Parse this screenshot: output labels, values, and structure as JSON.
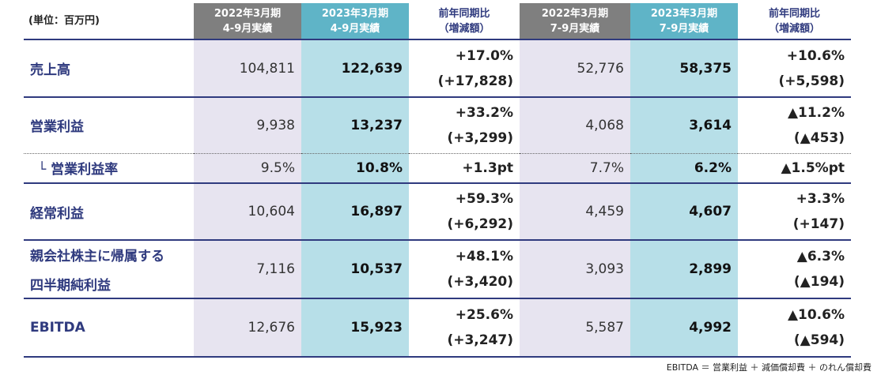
{
  "table": {
    "unit_label": "(単位：百万円)",
    "headers": [
      {
        "line1": "2022年3月期",
        "line2": "4-9月実績"
      },
      {
        "line1": "2023年3月期",
        "line2": "4-9月実績"
      },
      {
        "line1": "前年同期比",
        "line2": "（増減額）"
      },
      {
        "line1": "2022年3月期",
        "line2": "7-9月実績"
      },
      {
        "line1": "2023年3月期",
        "line2": "7-9月実績"
      },
      {
        "line1": "前年同期比",
        "line2": "（増減額）"
      }
    ],
    "rows": [
      {
        "label": "売上高",
        "prev_h1": "104,811",
        "cur_h1": "122,639",
        "yoy_h1_pct": "+17.0%",
        "yoy_h1_amt": "(+17,828)",
        "prev_q2": "52,776",
        "cur_q2": "58,375",
        "yoy_q2_pct": "+10.6%",
        "yoy_q2_amt": "(+5,598)"
      },
      {
        "label": "営業利益",
        "prev_h1": "9,938",
        "cur_h1": "13,237",
        "yoy_h1_pct": "+33.2%",
        "yoy_h1_amt": "(+3,299)",
        "prev_q2": "4,068",
        "cur_q2": "3,614",
        "yoy_q2_pct": "▲11.2%",
        "yoy_q2_amt": "(▲453)"
      },
      {
        "label": "└ 営業利益率",
        "prev_h1": "9.5%",
        "cur_h1": "10.8%",
        "yoy_h1": "+1.3pt",
        "prev_q2": "7.7%",
        "cur_q2": "6.2%",
        "yoy_q2": "▲1.5%pt"
      },
      {
        "label": "経常利益",
        "prev_h1": "10,604",
        "cur_h1": "16,897",
        "yoy_h1_pct": "+59.3%",
        "yoy_h1_amt": "(+6,292)",
        "prev_q2": "4,459",
        "cur_q2": "4,607",
        "yoy_q2_pct": "+3.3%",
        "yoy_q2_amt": "(+147)"
      },
      {
        "label_line1": "親会社株主に帰属する",
        "label_line2": "四半期純利益",
        "prev_h1": "7,116",
        "cur_h1": "10,537",
        "yoy_h1_pct": "+48.1%",
        "yoy_h1_amt": "(+3,420)",
        "prev_q2": "3,093",
        "cur_q2": "2,899",
        "yoy_q2_pct": "▲6.3%",
        "yoy_q2_amt": "(▲194)"
      },
      {
        "label": "EBITDA",
        "prev_h1": "12,676",
        "cur_h1": "15,923",
        "yoy_h1_pct": "+25.6%",
        "yoy_h1_amt": "(+3,247)",
        "prev_q2": "5,587",
        "cur_q2": "4,992",
        "yoy_q2_pct": "▲10.6%",
        "yoy_q2_amt": "(▲594)"
      }
    ]
  },
  "footnote": "EBITDA ＝ 営業利益 ＋ 減価償却費 ＋ のれん償却費"
}
